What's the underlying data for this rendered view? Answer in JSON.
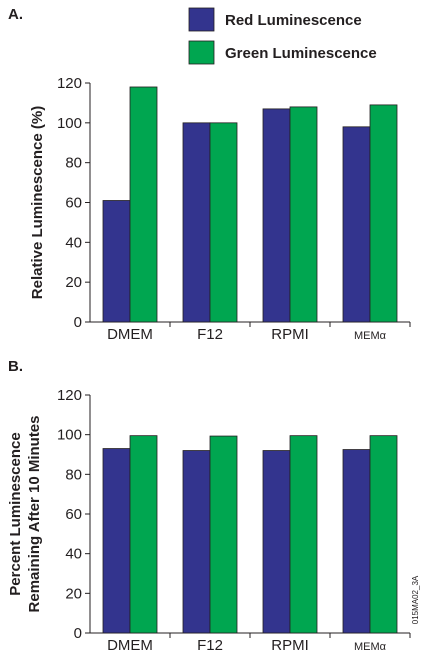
{
  "colors": {
    "red_series": "#33348e",
    "green_series": "#00a650",
    "axis": "#231f20"
  },
  "figure_id": "015MA02_3A",
  "chart_data": [
    {
      "panel_label": "A.",
      "type": "bar",
      "categories": [
        "DMEM",
        "F12",
        "RPMI",
        "MEMα"
      ],
      "series": [
        {
          "name": "Red Luminescence",
          "values": [
            61,
            100,
            107,
            98
          ]
        },
        {
          "name": "Green Luminescence",
          "values": [
            118,
            100,
            108,
            109
          ]
        }
      ],
      "ylabel_lines": [
        "Relative Luminescence (%)"
      ],
      "xlabel": "",
      "ylim": [
        0,
        120
      ],
      "yticks": [
        0,
        20,
        40,
        60,
        80,
        100,
        120
      ],
      "grid": false,
      "legend": "top-right"
    },
    {
      "panel_label": "B.",
      "type": "bar",
      "categories": [
        "DMEM",
        "F12",
        "RPMI",
        "MEMα"
      ],
      "series": [
        {
          "values": [
            93,
            92,
            92,
            92.5
          ]
        },
        {
          "values": [
            99.5,
            99.3,
            99.5,
            99.5
          ]
        }
      ],
      "ylabel_lines": [
        "Percent Luminescence",
        "Remaining After 10 Minutes"
      ],
      "xlabel": "",
      "ylim": [
        0,
        120
      ],
      "yticks": [
        0,
        20,
        40,
        60,
        80,
        100,
        120
      ],
      "grid": false
    }
  ]
}
